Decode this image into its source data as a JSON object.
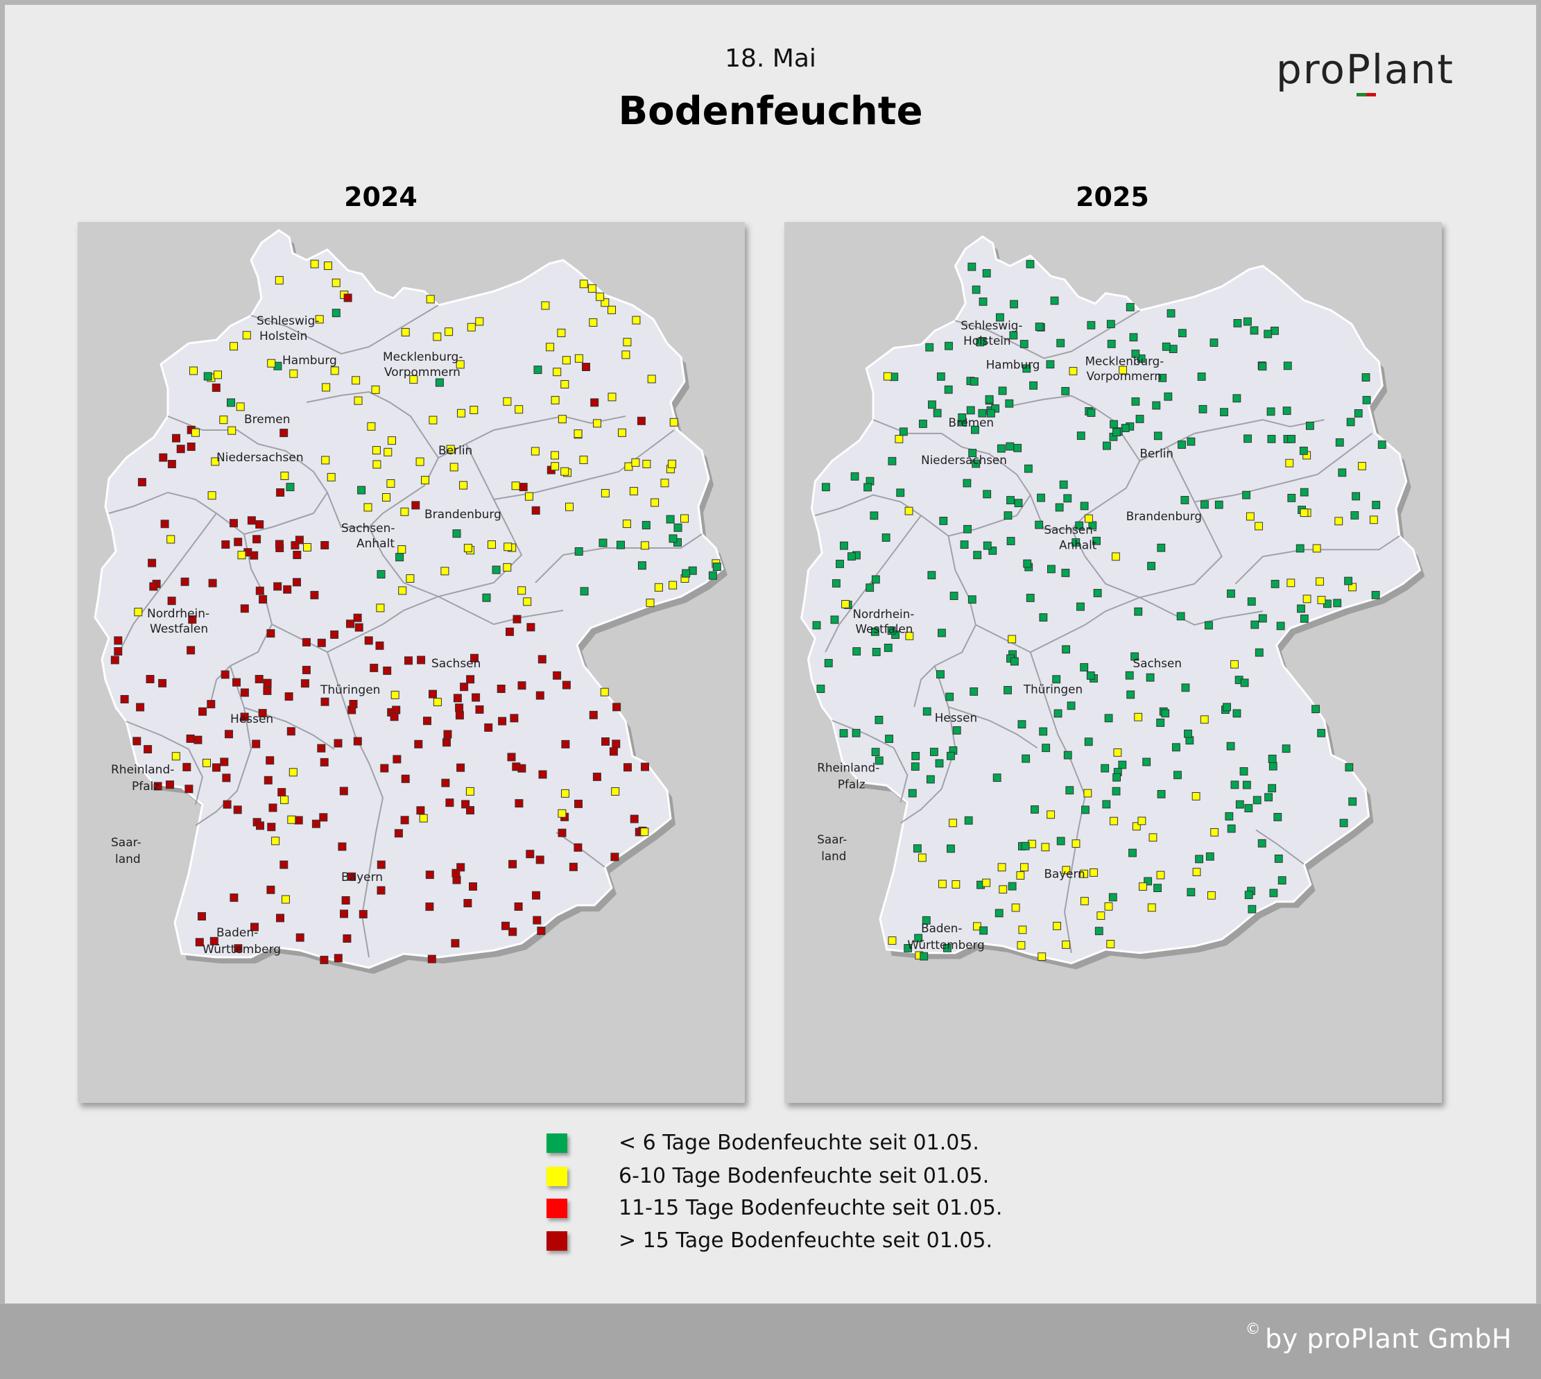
{
  "header": {
    "date": "18. Mai",
    "title": "Bodenfeuchte"
  },
  "logo": {
    "text": "proPlant",
    "colors": {
      "text": "#222222",
      "accent_green": "#1a8a2e",
      "accent_red": "#cc1111"
    }
  },
  "maps": [
    {
      "year": "2024",
      "dominant_class": "dark_red"
    },
    {
      "year": "2025",
      "dominant_class": "green"
    }
  ],
  "state_labels": {
    "sh1": "Schleswig-",
    "sh2": "Holstein",
    "hh": "Hamburg",
    "mv1": "Mecklenburg-",
    "mv2": "Vorpommern",
    "hb": "Bremen",
    "ni": "Niedersachsen",
    "be": "Berlin",
    "bb": "Brandenburg",
    "st1": "Sachsen-",
    "st2": "Anhalt",
    "nw1": "Nordrhein-",
    "nw2": "Westfalen",
    "sn": "Sachsen",
    "th": "Thüringen",
    "he": "Hessen",
    "rp1": "Rheinland-",
    "rp2": "Pfalz",
    "sl1": "Saar-",
    "sl2": "land",
    "by": "Bayern",
    "bw1": "Baden-",
    "bw2": "Württemberg"
  },
  "legend": [
    {
      "label": "< 6 Tage Bodenfeuchte seit 01.05.",
      "color": "#00a651"
    },
    {
      "label": "6-10 Tage Bodenfeuchte seit 01.05.",
      "color": "#ffff00"
    },
    {
      "label": "11-15 Tage Bodenfeuchte seit 01.05.",
      "color": "#ff0000"
    },
    {
      "label": "> 15 Tage Bodenfeuchte seit 01.05.",
      "color": "#b30000"
    }
  ],
  "footer": {
    "copyright_symbol": "©",
    "copyright": "by proPlant GmbH"
  }
}
